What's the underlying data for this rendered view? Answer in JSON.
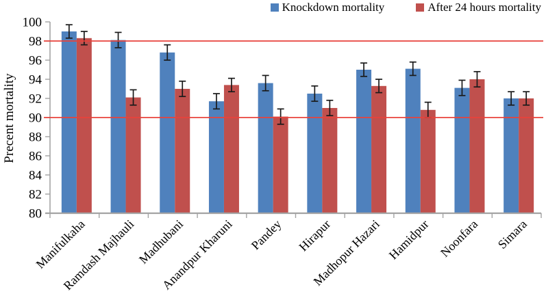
{
  "legend": {
    "items": [
      {
        "label": "Knockdown mortality",
        "color": "#4F81BD"
      },
      {
        "label": "After 24 hours mortality",
        "color": "#C0504D"
      }
    ]
  },
  "chart_data": {
    "type": "bar",
    "title": "",
    "xlabel": "",
    "ylabel": "Precent mortality",
    "ylim": [
      80,
      100
    ],
    "ytick_step": 2,
    "grid": false,
    "legend_position": "top-right",
    "categories": [
      "Manifulkaha",
      "Ramdash Majhauli",
      "Madhubani",
      "Anandpur Kharuni",
      "Pandey",
      "Hirapur",
      "Madhopur Hazari",
      "Hamidpur",
      "Noonfara",
      "Simara"
    ],
    "series": [
      {
        "name": "Knockdown mortality",
        "color": "#4F81BD",
        "values": [
          99.0,
          98.1,
          96.8,
          91.7,
          93.6,
          92.5,
          95.0,
          95.1,
          93.1,
          92.0
        ],
        "errors": [
          0.7,
          0.8,
          0.8,
          0.8,
          0.8,
          0.8,
          0.7,
          0.7,
          0.8,
          0.7
        ]
      },
      {
        "name": "After 24 hours mortality",
        "color": "#C0504D",
        "values": [
          98.3,
          92.1,
          93.0,
          93.4,
          90.1,
          91.0,
          93.3,
          90.8,
          94.0,
          92.0
        ],
        "errors": [
          0.7,
          0.8,
          0.8,
          0.7,
          0.8,
          0.8,
          0.7,
          0.8,
          0.8,
          0.7
        ]
      }
    ],
    "reference_lines": [
      {
        "y": 98,
        "color": "#E8423B"
      },
      {
        "y": 90,
        "color": "#E8423B"
      }
    ],
    "axis_color": "#A3A3A3",
    "error_bar_color": "#1A1A1A",
    "text_color": "#000000"
  }
}
